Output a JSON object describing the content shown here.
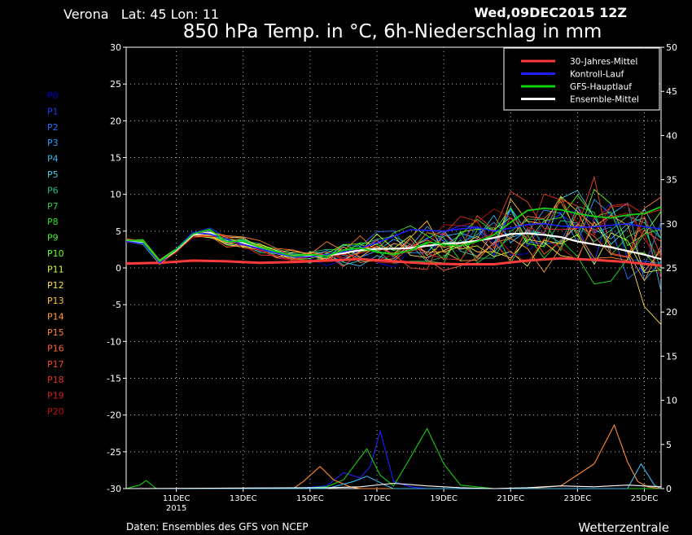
{
  "header": {
    "location": "Verona   Lat: 45 Lon: 11",
    "run": "Wed,09DEC2015 12Z",
    "title": "850 hPa Temp. in °C, 6h-Niederschlag in mm"
  },
  "footer": {
    "source": "Daten: Ensembles des GFS von NCEP",
    "brand": "Wetterzentrale"
  },
  "members": [
    "P0",
    "P1",
    "P2",
    "P3",
    "P4",
    "P5",
    "P6",
    "P7",
    "P8",
    "P9",
    "P10",
    "P11",
    "P12",
    "P13",
    "P14",
    "P15",
    "P16",
    "P17",
    "P18",
    "P19",
    "P20"
  ],
  "member_colors": [
    "#0000d0",
    "#1a3cff",
    "#2870ff",
    "#2f9cff",
    "#3ab8f0",
    "#40d0e0",
    "#20c080",
    "#20d050",
    "#20e020",
    "#40f020",
    "#60ff20",
    "#d0ff30",
    "#ffe040",
    "#ffc030",
    "#ff9c30",
    "#ff8030",
    "#ff6030",
    "#f04828",
    "#e03020",
    "#d02018",
    "#c01010"
  ],
  "legend": [
    {
      "label": "30-Jahres-Mittel",
      "color": "#ff3b3b"
    },
    {
      "label": "Kontroll-Lauf",
      "color": "#1e1eff"
    },
    {
      "label": "GFS-Hauptlauf",
      "color": "#10d010"
    },
    {
      "label": "Ensemble-Mittel",
      "color": "#ffffff"
    }
  ],
  "chart_data": {
    "type": "line",
    "xlim": [
      0,
      16
    ],
    "xticks": [
      {
        "x": 1.5,
        "label": "11DEC",
        "sub": "2015"
      },
      {
        "x": 3.5,
        "label": "13DEC"
      },
      {
        "x": 5.5,
        "label": "15DEC"
      },
      {
        "x": 7.5,
        "label": "17DEC"
      },
      {
        "x": 9.5,
        "label": "19DEC"
      },
      {
        "x": 11.5,
        "label": "21DEC"
      },
      {
        "x": 13.5,
        "label": "23DEC"
      },
      {
        "x": 15.5,
        "label": "25DEC"
      }
    ],
    "ylim": [
      -30,
      30
    ],
    "yticks": [
      30,
      25,
      20,
      15,
      10,
      5,
      0,
      -5,
      -10,
      -15,
      -20,
      -25,
      -30
    ],
    "y2lim": [
      0,
      50
    ],
    "y2ticks": [
      50,
      45,
      40,
      35,
      30,
      25,
      20,
      15,
      10,
      5,
      0
    ],
    "grid": true,
    "legend_position": "top-right",
    "series": [
      {
        "name": "30-Jahres-Mittel",
        "color": "#ff3b3b",
        "width": 3,
        "x": [
          0,
          1,
          2,
          3,
          4,
          5,
          6,
          7,
          8,
          9,
          10,
          11,
          12,
          13,
          14,
          15,
          16
        ],
        "y": [
          0.6,
          0.7,
          1.0,
          0.9,
          0.7,
          0.8,
          1.0,
          1.2,
          0.9,
          0.6,
          0.5,
          0.5,
          1.0,
          1.3,
          1.1,
          0.8,
          0.3
        ]
      },
      {
        "name": "Ensemble-Mittel",
        "color": "#ffffff",
        "width": 2.2,
        "x": [
          0,
          0.5,
          1,
          1.5,
          2,
          2.5,
          3,
          3.5,
          4,
          4.5,
          5,
          5.5,
          6,
          6.5,
          7,
          7.5,
          8,
          8.5,
          9,
          9.5,
          10,
          10.5,
          11,
          11.5,
          12,
          12.5,
          13,
          13.5,
          14,
          14.5,
          15,
          15.5,
          16
        ],
        "y": [
          3.7,
          3.5,
          0.8,
          2.4,
          4.5,
          4.8,
          3.8,
          3.4,
          2.7,
          2.0,
          1.5,
          1.6,
          1.7,
          2.0,
          2.4,
          2.6,
          2.6,
          2.7,
          3.0,
          3.3,
          3.4,
          3.7,
          4.1,
          4.6,
          4.7,
          4.5,
          4.2,
          3.6,
          3.2,
          2.8,
          2.3,
          1.8,
          1.2
        ]
      },
      {
        "name": "Kontroll-Lauf",
        "color": "#1e1eff",
        "width": 1.6,
        "x": [
          0,
          0.5,
          1,
          1.5,
          2,
          2.5,
          3,
          3.5,
          4,
          4.5,
          5,
          5.5,
          6,
          6.5,
          7,
          7.5,
          8,
          8.5,
          9,
          9.5,
          10,
          10.5,
          11,
          11.5,
          12,
          12.5,
          13,
          13.5,
          14,
          14.5,
          15,
          15.5,
          16
        ],
        "y": [
          3.6,
          3.3,
          0.7,
          2.6,
          4.8,
          4.6,
          3.9,
          3.2,
          2.6,
          2.0,
          1.5,
          1.5,
          1.8,
          2.2,
          2.7,
          3.4,
          4.3,
          5.2,
          5.1,
          5.0,
          5.3,
          5.5,
          5.0,
          5.4,
          5.9,
          6.0,
          5.7,
          5.5,
          5.6,
          5.8,
          6.0,
          5.6,
          5.3
        ]
      },
      {
        "name": "GFS-Hauptlauf",
        "color": "#10d010",
        "width": 1.8,
        "x": [
          0,
          0.5,
          1,
          1.5,
          2,
          2.5,
          3,
          3.5,
          4,
          4.5,
          5,
          5.5,
          6,
          6.5,
          7,
          7.5,
          8,
          8.5,
          9,
          9.5,
          10,
          10.5,
          11,
          11.5,
          12,
          12.5,
          13,
          13.5,
          14,
          14.5,
          15,
          15.5,
          16
        ],
        "y": [
          3.8,
          3.6,
          0.9,
          2.5,
          4.6,
          5.2,
          3.6,
          3.6,
          2.8,
          2.2,
          1.6,
          1.8,
          1.6,
          2.4,
          2.7,
          2.2,
          1.8,
          2.4,
          3.5,
          3.2,
          3.0,
          3.6,
          4.5,
          6.2,
          7.8,
          8.1,
          7.9,
          7.4,
          7.0,
          6.8,
          7.2,
          7.4,
          8.3
        ]
      }
    ],
    "precip": [
      {
        "color": "#1e1eff",
        "x": [
          0,
          5,
          6,
          6.5,
          7,
          7.3,
          7.6,
          8,
          8.5,
          9,
          10,
          11,
          12,
          16
        ],
        "y": [
          0,
          0,
          0.3,
          1.8,
          1.2,
          2.5,
          6.5,
          0.8,
          0.2,
          0,
          0,
          0,
          0,
          0
        ]
      },
      {
        "color": "#10d010",
        "x": [
          0,
          0.4,
          0.6,
          0.9,
          5,
          6,
          6.5,
          7.2,
          7.6,
          8,
          8.5,
          9,
          9.5,
          10,
          11,
          12,
          16
        ],
        "y": [
          0,
          0.4,
          0.9,
          0,
          0,
          0.2,
          1.0,
          4.5,
          1.5,
          0.3,
          3.5,
          6.8,
          2.8,
          0.4,
          0,
          0,
          0
        ]
      },
      {
        "color": "#ff8c30",
        "x": [
          0,
          5,
          5.3,
          5.8,
          6.2,
          6.7,
          7,
          12,
          13,
          14,
          14.6,
          15,
          15.3,
          15.6,
          16
        ],
        "y": [
          0,
          0,
          0.8,
          2.5,
          1.0,
          0.2,
          0,
          0,
          0.3,
          2.8,
          7.2,
          3.0,
          0.8,
          0.2,
          0
        ]
      },
      {
        "color": "#3ab8f0",
        "x": [
          0,
          6,
          6.8,
          7.2,
          7.8,
          8,
          12,
          15,
          15.4,
          15.8,
          16
        ],
        "y": [
          0,
          0,
          0.8,
          1.4,
          0.3,
          0,
          0,
          0,
          2.8,
          0.4,
          0
        ]
      },
      {
        "color": "#ffffff",
        "x": [
          0,
          6,
          7,
          8,
          9,
          10,
          11,
          12,
          13,
          14,
          15,
          16
        ],
        "y": [
          0,
          0.1,
          0.2,
          0.6,
          0.3,
          0.1,
          0,
          0.1,
          0.3,
          0.2,
          0.4,
          0.2
        ]
      }
    ]
  }
}
